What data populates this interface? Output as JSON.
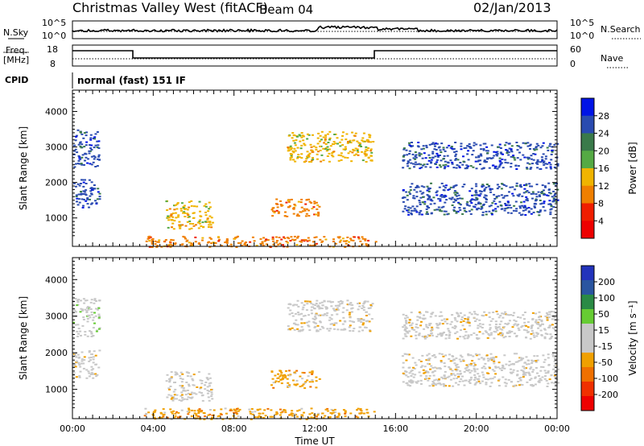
{
  "header": {
    "title": "Christmas Valley West (fitACF)",
    "beam": "Beam 04",
    "date": "02/Jan/2013"
  },
  "status_panel": {
    "nsky_label": "N.Sky",
    "nsky_ticks": [
      "10^5",
      "10^0"
    ],
    "nsearch_label": "N.Search",
    "nsearch_ticks": [
      "10^5",
      "10^0"
    ],
    "freq_label": "Freq.",
    "freq_unit": "[MHz]",
    "freq_ticks": [
      "18",
      "8"
    ],
    "nave_label": "Nave",
    "nave_ticks": [
      "60",
      "0"
    ],
    "cpid_label": "CPID",
    "cpid_text": "normal (fast) 151 IF"
  },
  "colors": {
    "power_scale": [
      "#0014e6",
      "#2a4bb0",
      "#3a7a4a",
      "#55aa44",
      "#f0b400",
      "#f07f00",
      "#f01e00",
      "#ee0000"
    ],
    "velocity_scale": [
      "#2233bb",
      "#2a55a0",
      "#2a8a45",
      "#66cc33",
      "#c8c8c8",
      "#c8c8c8",
      "#f0a000",
      "#f07000",
      "#f03000",
      "#ee0000"
    ]
  },
  "chart_data": [
    {
      "type": "scatter",
      "panel": "power",
      "ylabel": "Slant Range [km]",
      "ylim": [
        200,
        4600
      ],
      "y_ticks": [
        1000,
        2000,
        3000,
        4000
      ],
      "xlim": [
        "00:00",
        "24:00"
      ],
      "colorbar": {
        "label": "Power [dB]",
        "range": [
          0,
          32
        ],
        "tick_labels": [
          "28",
          "24",
          "20",
          "16",
          "12",
          "8",
          "4"
        ]
      },
      "echo_regions": [
        {
          "t_start_h": 0.0,
          "t_end_h": 1.3,
          "range_km": [
            1300,
            2100
          ],
          "value_db": 29
        },
        {
          "t_start_h": 0.0,
          "t_end_h": 1.3,
          "range_km": [
            2450,
            3500
          ],
          "value_db": 26
        },
        {
          "t_start_h": 4.6,
          "t_end_h": 6.9,
          "range_km": [
            700,
            1500
          ],
          "value_db": 12
        },
        {
          "t_start_h": 10.6,
          "t_end_h": 14.9,
          "range_km": [
            2600,
            3450
          ],
          "value_db": 14
        },
        {
          "t_start_h": 9.8,
          "t_end_h": 12.2,
          "range_km": [
            1050,
            1550
          ],
          "value_db": 9
        },
        {
          "t_start_h": 16.3,
          "t_end_h": 24.0,
          "range_km": [
            1100,
            2000
          ],
          "value_db": 29
        },
        {
          "t_start_h": 16.3,
          "t_end_h": 24.0,
          "range_km": [
            2400,
            3150
          ],
          "value_db": 29
        },
        {
          "t_start_h": 3.5,
          "t_end_h": 15.0,
          "range_km": [
            200,
            500
          ],
          "value_db": 10
        }
      ]
    },
    {
      "type": "scatter",
      "panel": "velocity",
      "xlabel": "Time UT",
      "ylabel": "Slant Range [km]",
      "ylim": [
        200,
        4600
      ],
      "y_ticks": [
        1000,
        2000,
        3000,
        4000
      ],
      "xlim": [
        "00:00",
        "24:00"
      ],
      "x_tick_labels": [
        "00:00",
        "04:00",
        "08:00",
        "12:00",
        "16:00",
        "20:00",
        "00:00"
      ],
      "colorbar": {
        "label": "Velocity [m s⁻¹]",
        "range": [
          -250,
          250
        ],
        "tick_labels": [
          "200",
          "100",
          "50",
          "15",
          "-15",
          "-50",
          "-100",
          "-200"
        ]
      },
      "echo_regions": [
        {
          "t_start_h": 0.0,
          "t_end_h": 1.3,
          "range_km": [
            1300,
            2100
          ],
          "value_ms": 0
        },
        {
          "t_start_h": 0.0,
          "t_end_h": 1.3,
          "range_km": [
            2450,
            3500
          ],
          "value_ms": 5
        },
        {
          "t_start_h": 4.6,
          "t_end_h": 6.9,
          "range_km": [
            700,
            1500
          ],
          "value_ms": 0
        },
        {
          "t_start_h": 10.6,
          "t_end_h": 14.9,
          "range_km": [
            2600,
            3450
          ],
          "value_ms": 0
        },
        {
          "t_start_h": 9.8,
          "t_end_h": 12.2,
          "range_km": [
            1050,
            1550
          ],
          "value_ms": -60
        },
        {
          "t_start_h": 16.3,
          "t_end_h": 24.0,
          "range_km": [
            1100,
            2000
          ],
          "value_ms": 0
        },
        {
          "t_start_h": 16.3,
          "t_end_h": 24.0,
          "range_km": [
            2400,
            3150
          ],
          "value_ms": 0
        },
        {
          "t_start_h": 3.5,
          "t_end_h": 15.0,
          "range_km": [
            200,
            500
          ],
          "value_ms": -60
        }
      ]
    }
  ]
}
